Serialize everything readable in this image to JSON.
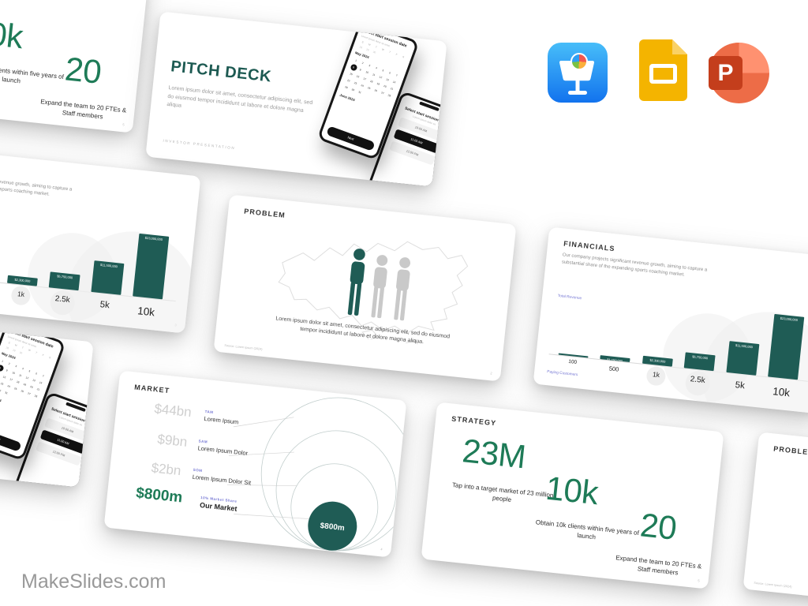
{
  "brand": {
    "site_label": "MakeSlides.com"
  },
  "app_icons": [
    {
      "name": "keynote"
    },
    {
      "name": "google-slides",
      "letter": "P_none"
    },
    {
      "name": "powerpoint",
      "letter": "P"
    }
  ],
  "colors": {
    "accent_green": "#1e7b57",
    "dark_teal": "#1f5c55",
    "purple_label": "#7678d4",
    "cover_title": "#1d5a52"
  },
  "slides": {
    "cover": {
      "title": "PITCH DECK",
      "body": "Lorem ipsum dolor sit amet, consectetur adipiscing elit, sed do eiusmod tempor incididunt ut labore et dolore magna aliqua",
      "footer": "INVESTOR PRESENTATION",
      "phone_date": {
        "title": "Select start session date",
        "subtitle": "Lorem ipsum dolor sit amet",
        "week": [
          "S",
          "M",
          "T",
          "W",
          "T",
          "F",
          "S"
        ],
        "prev_days": [
          "28",
          "29",
          "30"
        ],
        "month": "May 2024",
        "days_in_month": 31,
        "selected_day": 8,
        "next_month": "June 2024",
        "button": "Next"
      },
      "phone_time": {
        "title": "Select start session time",
        "subtitle": "Lorem ipsum dolor sit",
        "times": [
          "10:00 AM",
          "11:00 AM",
          "12:00 PM"
        ],
        "selected": "11:00 AM"
      }
    },
    "problem": {
      "title": "PROBLEM",
      "body": "Lorem ipsum dolor sit amet, consectetur adipiscing elit, sed do eiusmod tempor incididunt ut labore et dolore magna aliqua.",
      "source": "Source: Lorem Ipsum (2024)",
      "page": "2"
    },
    "financials": {
      "title": "FINANCIALS",
      "body": "Our company projects significant revenue growth, aiming to capture a substantial share of the expanding sports coaching market.",
      "y_axis": "Total Revenue",
      "x_axis": "Paying Customers",
      "page": "3",
      "chart_data": {
        "type": "bar",
        "categories": [
          "100",
          "500",
          "1k",
          "2.5k",
          "5k",
          "10k"
        ],
        "values": [
          230000,
          1150000,
          2300000,
          5750000,
          11500000,
          23000000
        ],
        "labels": [
          "$230,000",
          "$1,150,000",
          "$2,300,000",
          "$5,750,000",
          "$11,500,000",
          "$23,000,000"
        ],
        "xlabel": "Paying Customers",
        "ylabel": "Total Revenue"
      }
    },
    "market": {
      "title": "MARKET",
      "page": "4",
      "rows": [
        {
          "value": "$44bn",
          "tag": "TAM",
          "name": "Lorem Ipsum"
        },
        {
          "value": "$9bn",
          "tag": "SAM",
          "name": "Lorem Ipsum Dolor"
        },
        {
          "value": "$2bn",
          "tag": "SOM",
          "name": "Lorem Ipsum Dolor Sit"
        },
        {
          "value": "$800m",
          "tag": "10% Market Share",
          "name": "Our Market"
        }
      ],
      "bubble_label": "$800m"
    },
    "strategy": {
      "title": "STRATEGY",
      "page": "5",
      "stats": [
        {
          "value": "23M",
          "caption": "Tap into a target market of 23 million people"
        },
        {
          "value": "10k",
          "caption": "Obtain 10k clients within five years of launch"
        },
        {
          "value": "20",
          "caption": "Expand the team to 20 FTEs & Staff members"
        }
      ]
    }
  }
}
